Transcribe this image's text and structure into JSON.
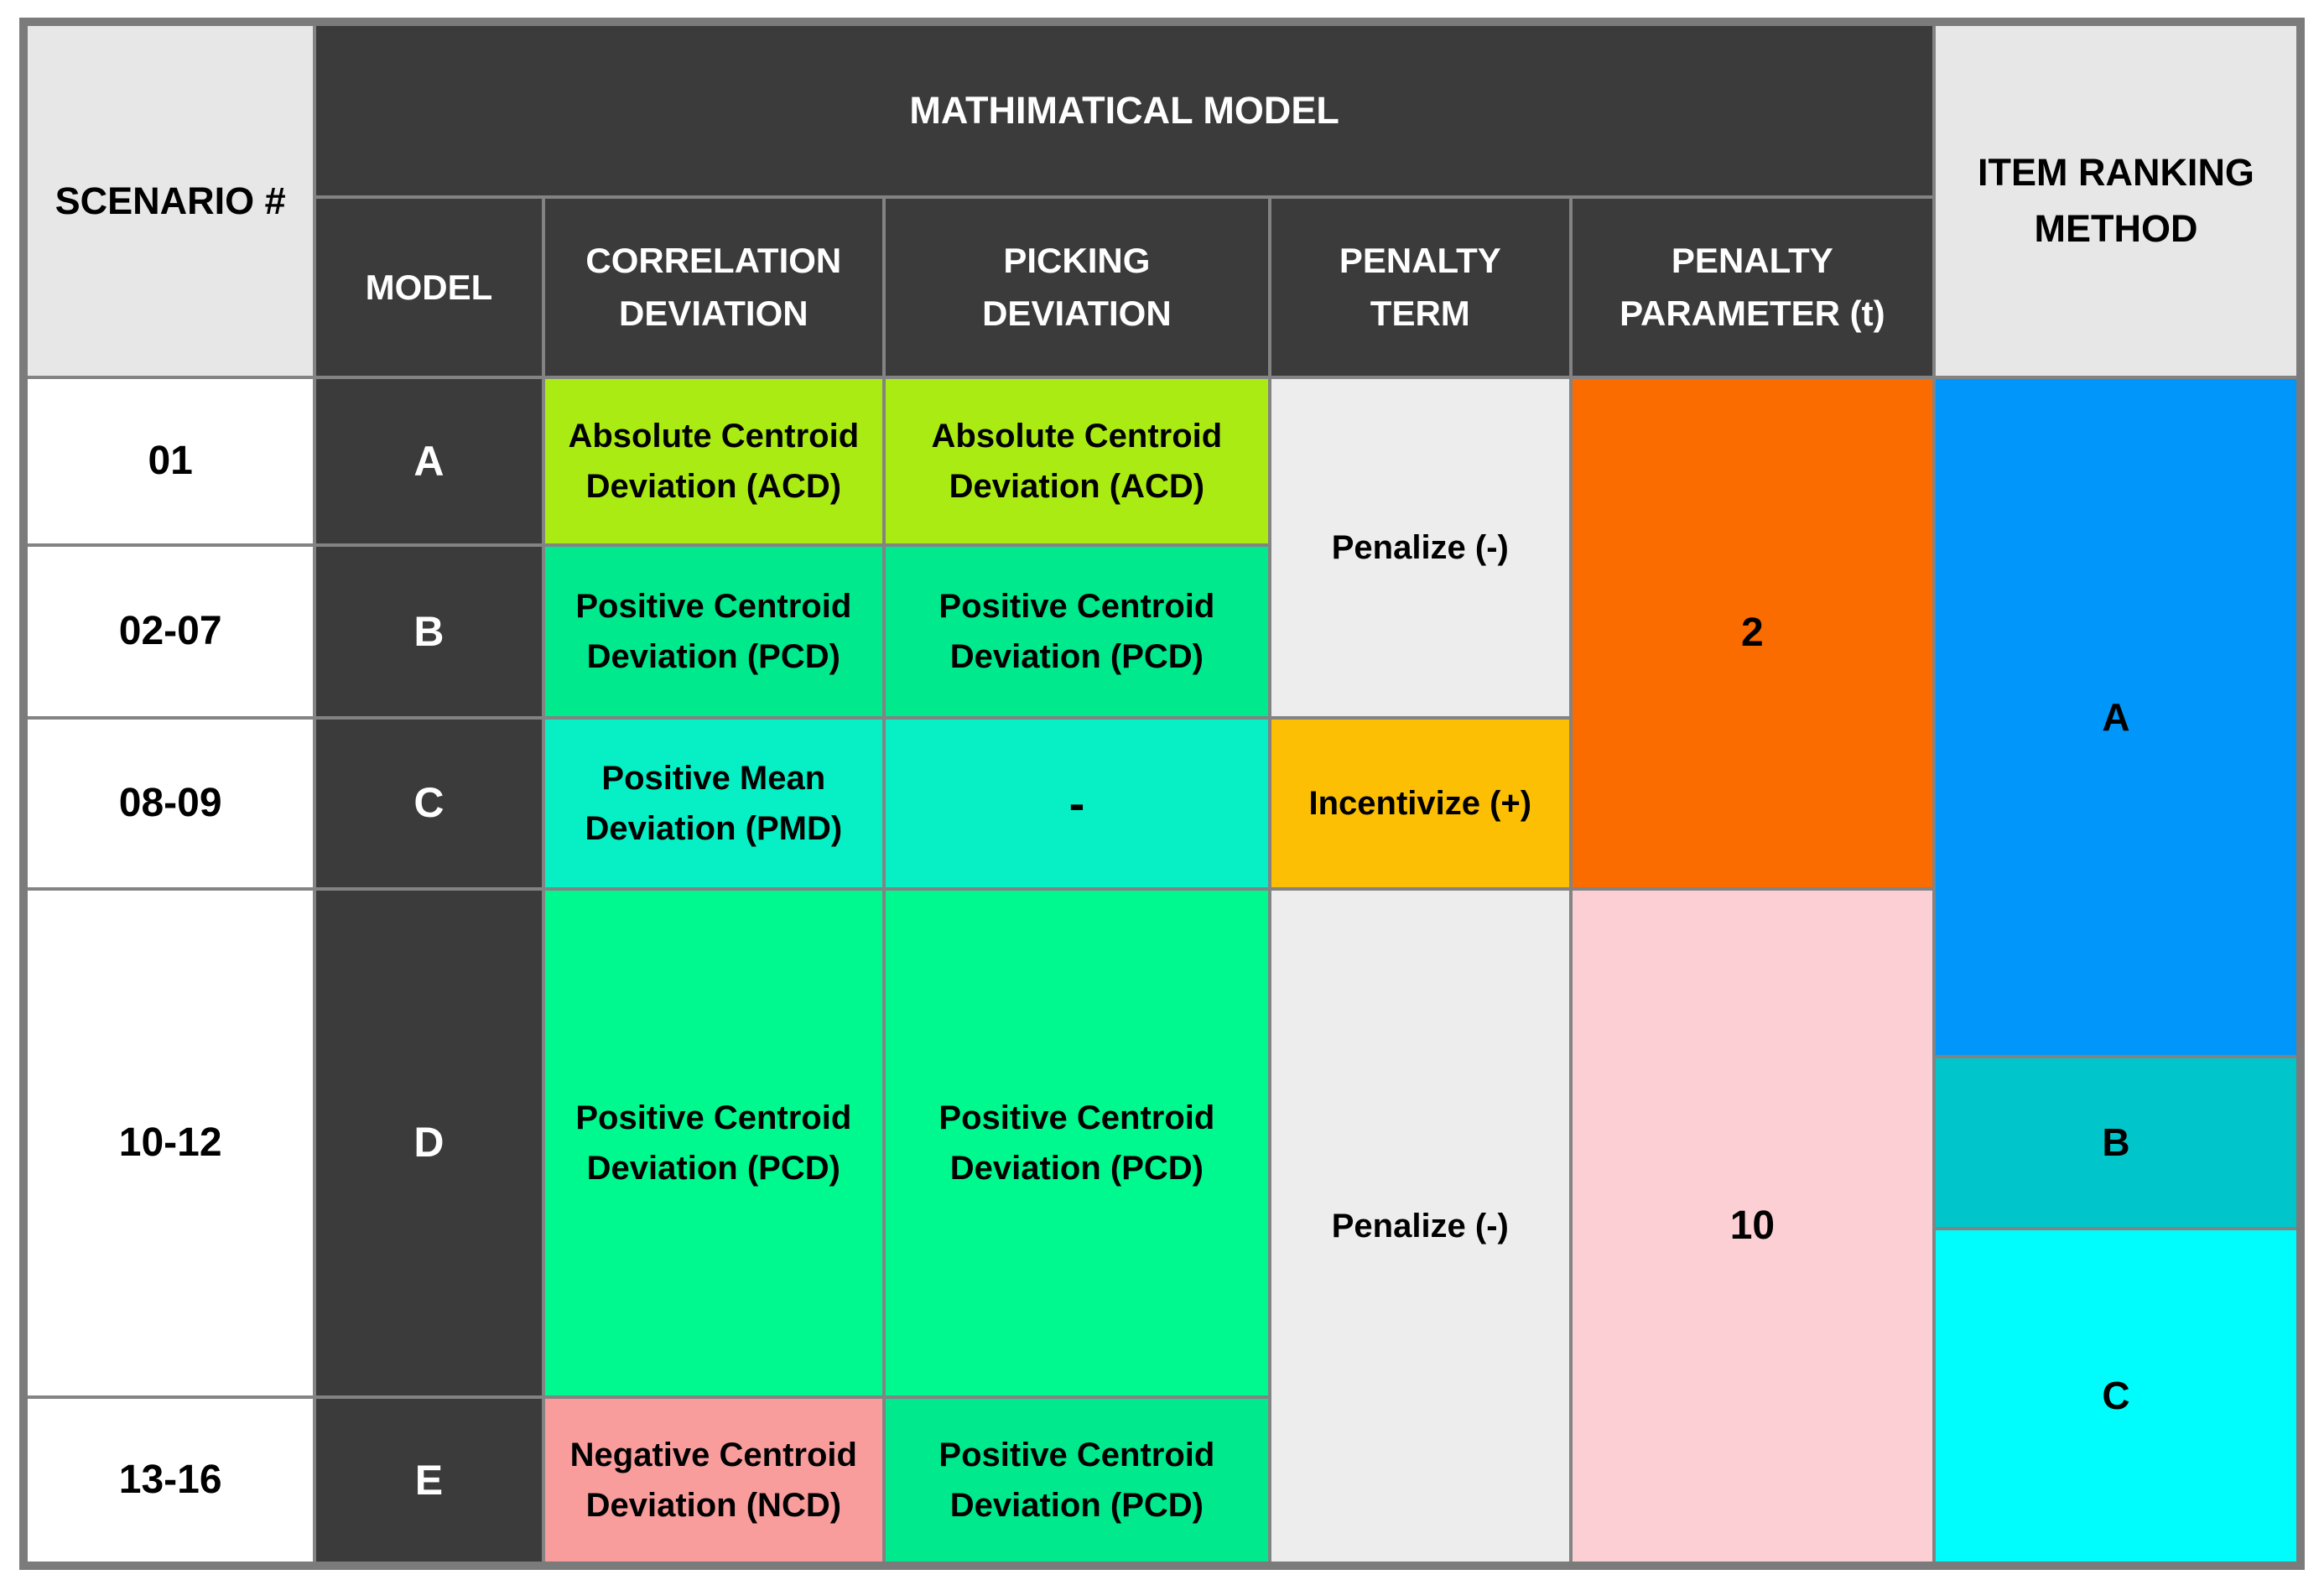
{
  "table": {
    "headers": {
      "scenario": "SCENARIO #",
      "math_model": "MATHIMATICAL MODEL",
      "model": "MODEL",
      "correlation_deviation": "CORRELATION\nDEVIATION",
      "picking_deviation": "PICKING\nDEVIATION",
      "penalty_term": "PENALTY\nTERM",
      "penalty_parameter": "PENALTY\nPARAMETER (t)",
      "item_ranking": "ITEM RANKING\nMETHOD"
    },
    "rows": {
      "s01": {
        "scenario": "01",
        "model": "A",
        "correlation": "Absolute Centroid\nDeviation (ACD)",
        "picking": "Absolute Centroid\nDeviation (ACD)"
      },
      "s02_07": {
        "scenario": "02-07",
        "model": "B",
        "correlation": "Positive Centroid\nDeviation (PCD)",
        "picking": "Positive Centroid\nDeviation (PCD)"
      },
      "s08_09": {
        "scenario": "08-09",
        "model": "C",
        "correlation": "Positive Mean\nDeviation (PMD)",
        "picking": "-",
        "penalty_term": "Incentivize (+)"
      },
      "s10_12": {
        "scenario": "10-12",
        "model": "D",
        "correlation": "Positive Centroid\nDeviation (PCD)",
        "picking": "Positive Centroid\nDeviation (PCD)"
      },
      "s13_16": {
        "scenario": "13-16",
        "model": "E",
        "correlation": "Negative Centroid\nDeviation (NCD)",
        "picking": "Positive Centroid\nDeviation (PCD)"
      }
    },
    "merged": {
      "penalize_top": "Penalize (-)",
      "penalize_bottom": "Penalize (-)",
      "parameter_top": "2",
      "parameter_bottom": "10",
      "rank_a": "A",
      "rank_b": "B",
      "rank_c": "C"
    }
  },
  "colors": {
    "header_dark": "#3b3b3b",
    "header_light": "#e8e7e7",
    "row_white": "#ffffff",
    "acd_yellow_green": "#abeb14",
    "pcd_green": "#00e98c",
    "pcd_green_bright": "#00f98e",
    "pmd_turquoise": "#06efc5",
    "penalize_gray": "#eeeded",
    "incentivize_gold": "#fcbf04",
    "parameter_orange": "#fa6c00",
    "parameter_pink": "#fccfd4",
    "ncd_salmon": "#f89c9c",
    "rank_a_blue": "#0096fa",
    "rank_b_teal": "#00c6cb",
    "rank_c_cyan": "#00fdfd",
    "gridline_gray": "#838383",
    "outer_border_gray": "#7b7b7b"
  },
  "chart_data": {
    "type": "table",
    "title": "",
    "columns": [
      "SCENARIO #",
      "MODEL",
      "CORRELATION DEVIATION",
      "PICKING DEVIATION",
      "PENALTY TERM",
      "PENALTY PARAMETER (t)",
      "ITEM RANKING METHOD"
    ],
    "rows": [
      [
        "01",
        "A",
        "Absolute Centroid Deviation (ACD)",
        "Absolute Centroid Deviation (ACD)",
        "Penalize (-)",
        "2",
        "A"
      ],
      [
        "02-07",
        "B",
        "Positive Centroid Deviation (PCD)",
        "Positive Centroid Deviation (PCD)",
        "Penalize (-)",
        "2",
        "A"
      ],
      [
        "08-09",
        "C",
        "Positive Mean Deviation (PMD)",
        "-",
        "Incentivize (+)",
        "2",
        "A"
      ],
      [
        "10-12",
        "D",
        "Positive Centroid Deviation (PCD)",
        "Positive Centroid Deviation (PCD)",
        "Penalize (-)",
        "10",
        "A, B, C"
      ],
      [
        "13-16",
        "E",
        "Negative Centroid Deviation (NCD)",
        "Positive Centroid Deviation (PCD)",
        "Penalize (-)",
        "10",
        "C"
      ]
    ],
    "layout_hints": {
      "merged_cells": [
        "PENALTY TERM 'Penalize (-)' spans scenarios 01 and 02-07",
        "PENALTY PARAMETER '2' spans scenarios 01 to 08-09",
        "PENALTY TERM 'Penalize (-)' spans scenarios 10-12 and 13-16",
        "PENALTY PARAMETER '10' spans scenarios 10-12 and 13-16",
        "ITEM RANKING 'A' spans scenarios 01 through upper part of 10-12",
        "ITEM RANKING 'B' and 'C' split the remainder of the column"
      ],
      "grid": "on",
      "header_rows": 2
    }
  }
}
